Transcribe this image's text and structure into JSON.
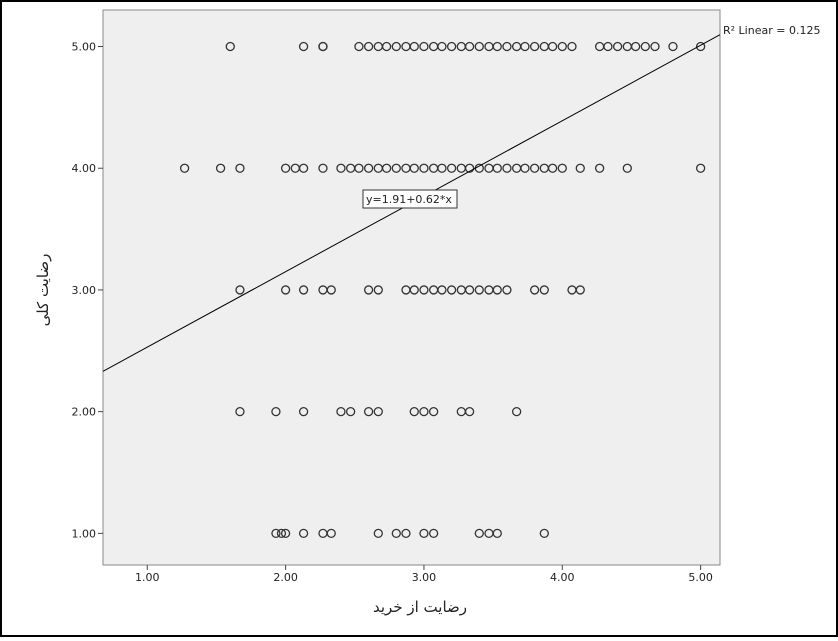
{
  "chart_data": {
    "type": "scatter",
    "x_label": "رضایت از خرید",
    "y_label": "رضایت کلی",
    "xlim": [
      0.68,
      5.14
    ],
    "ylim": [
      0.74,
      5.3
    ],
    "xticks": [
      {
        "value": 1,
        "label": "1.00"
      },
      {
        "value": 2,
        "label": "2.00"
      },
      {
        "value": 3,
        "label": "3.00"
      },
      {
        "value": 4,
        "label": "4.00"
      },
      {
        "value": 5,
        "label": "5.00"
      }
    ],
    "yticks": [
      {
        "value": 1,
        "label": "1.00"
      },
      {
        "value": 2,
        "label": "2.00"
      },
      {
        "value": 3,
        "label": "3.00"
      },
      {
        "value": 4,
        "label": "4.00"
      },
      {
        "value": 5,
        "label": "5.00"
      }
    ],
    "color": "#333333",
    "x": [
      1.6,
      2.13,
      2.27,
      2.27,
      2.53,
      2.6,
      2.67,
      2.73,
      2.8,
      2.87,
      2.93,
      3.0,
      3.07,
      3.13,
      3.2,
      3.27,
      3.33,
      3.4,
      3.47,
      3.53,
      3.6,
      3.67,
      3.73,
      3.8,
      3.87,
      3.93,
      4.0,
      4.07,
      4.27,
      4.33,
      4.4,
      4.47,
      4.53,
      4.6,
      4.67,
      4.8,
      5.0,
      1.27,
      1.53,
      1.67,
      2.0,
      2.07,
      2.13,
      2.27,
      2.4,
      2.47,
      2.53,
      2.6,
      2.67,
      2.73,
      2.8,
      2.87,
      2.93,
      3.0,
      3.07,
      3.13,
      3.2,
      3.27,
      3.33,
      3.4,
      3.47,
      3.53,
      3.6,
      3.67,
      3.73,
      3.8,
      3.87,
      3.93,
      4.0,
      4.13,
      4.27,
      4.47,
      5.0,
      1.67,
      2.0,
      2.13,
      2.27,
      2.33,
      2.6,
      2.67,
      2.87,
      2.93,
      3.0,
      3.07,
      3.13,
      3.2,
      3.27,
      3.33,
      3.4,
      3.47,
      3.53,
      3.6,
      3.8,
      3.87,
      4.07,
      4.13,
      1.67,
      1.93,
      2.13,
      2.4,
      2.47,
      2.6,
      2.67,
      2.93,
      3.0,
      3.07,
      3.27,
      3.33,
      3.67,
      1.93,
      1.97,
      2.0,
      2.13,
      2.27,
      2.33,
      2.67,
      2.8,
      2.87,
      3.0,
      3.07,
      3.4,
      3.47,
      3.53,
      3.87
    ],
    "values": [
      5,
      5,
      5,
      5,
      5,
      5,
      5,
      5,
      5,
      5,
      5,
      5,
      5,
      5,
      5,
      5,
      5,
      5,
      5,
      5,
      5,
      5,
      5,
      5,
      5,
      5,
      5,
      5,
      5,
      5,
      5,
      5,
      5,
      5,
      5,
      5,
      5,
      4,
      4,
      4,
      4,
      4,
      4,
      4,
      4,
      4,
      4,
      4,
      4,
      4,
      4,
      4,
      4,
      4,
      4,
      4,
      4,
      4,
      4,
      4,
      4,
      4,
      4,
      4,
      4,
      4,
      4,
      4,
      4,
      4,
      4,
      4,
      4,
      3,
      3,
      3,
      3,
      3,
      3,
      3,
      3,
      3,
      3,
      3,
      3,
      3,
      3,
      3,
      3,
      3,
      3,
      3,
      3,
      3,
      3,
      3,
      2,
      2,
      2,
      2,
      2,
      2,
      2,
      2,
      2,
      2,
      2,
      2,
      2,
      1,
      1,
      1,
      1,
      1,
      1,
      1,
      1,
      1,
      1,
      1,
      1,
      1,
      1,
      1
    ],
    "fit": {
      "intercept": 1.91,
      "slope": 0.62,
      "equation_label": "y=1.91+0.62*x",
      "r2_label": "R² Linear = 0.125",
      "color": "#000000"
    }
  }
}
